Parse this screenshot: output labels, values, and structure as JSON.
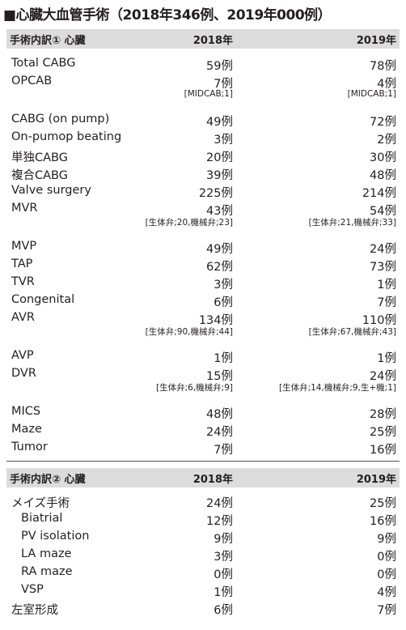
{
  "title": "■心臓大血管手術（2018年346例、2019年000例）",
  "sec1": {
    "header": {
      "label": "手術内訳① 心臓",
      "y1": "2018年",
      "y2": "2019年"
    },
    "rows": [
      {
        "label": "Total CABG",
        "v1": "59例",
        "v2": "78例"
      },
      {
        "label": "OPCAB",
        "v1": "7例",
        "v2": "4例",
        "n1": "[MIDCAB;1]",
        "n2": "[MIDCAB;1]"
      },
      {
        "label": "CABG (on pump)",
        "v1": "49例",
        "v2": "72例"
      },
      {
        "label": "On-pumop beating",
        "v1": "3例",
        "v2": "2例"
      },
      {
        "label": "単独CABG",
        "v1": "20例",
        "v2": "30例"
      },
      {
        "label": "複合CABG",
        "v1": "39例",
        "v2": "48例"
      },
      {
        "label": "Valve  surgery",
        "v1": "225例",
        "v2": "214例"
      },
      {
        "label": "MVR",
        "v1": "43例",
        "v2": "54例",
        "n1": "[生体弁;20,機械弁;23]",
        "n2": "[生体弁;21,機械弁;33]"
      },
      {
        "label": "MVP",
        "v1": "49例",
        "v2": "24例"
      },
      {
        "label": "TAP",
        "v1": "62例",
        "v2": "73例"
      },
      {
        "label": "TVR",
        "v1": "3例",
        "v2": "1例"
      },
      {
        "label": "Congenital",
        "v1": "6例",
        "v2": "7例"
      },
      {
        "label": "AVR",
        "v1": "134例",
        "v2": "110例",
        "n1": "[生体弁;90,機械弁;44]",
        "n2": "[生体弁;67,機械弁;43]"
      },
      {
        "label": "AVP",
        "v1": "1例",
        "v2": "1例"
      },
      {
        "label": "DVR",
        "v1": "15例",
        "v2": "24例",
        "n1": "[生体弁;6,機械弁;9]",
        "n2": "[生体弁;14,機械弁;9,生+機;1]"
      },
      {
        "label": "MICS",
        "v1": "48例",
        "v2": "28例"
      },
      {
        "label": "Maze",
        "v1": "24例",
        "v2": "25例"
      },
      {
        "label": "Tumor",
        "v1": "7例",
        "v2": "16例"
      }
    ]
  },
  "sec2": {
    "header": {
      "label": "手術内訳② 心臓",
      "y1": "2018年",
      "y2": "2019年"
    },
    "rows": [
      {
        "label": "メイズ手術",
        "v1": "24例",
        "v2": "25例"
      },
      {
        "label": "Biatrial",
        "v1": "12例",
        "v2": "16例"
      },
      {
        "label": "PV isolation",
        "v1": "9例",
        "v2": "9例"
      },
      {
        "label": "LA maze",
        "v1": "3例",
        "v2": "0例"
      },
      {
        "label": "RA maze",
        "v1": "0例",
        "v2": "0例"
      },
      {
        "label": "VSP",
        "v1": "1例",
        "v2": "4例"
      },
      {
        "label": "左室形成",
        "v1": "6例",
        "v2": "7例"
      }
    ]
  }
}
